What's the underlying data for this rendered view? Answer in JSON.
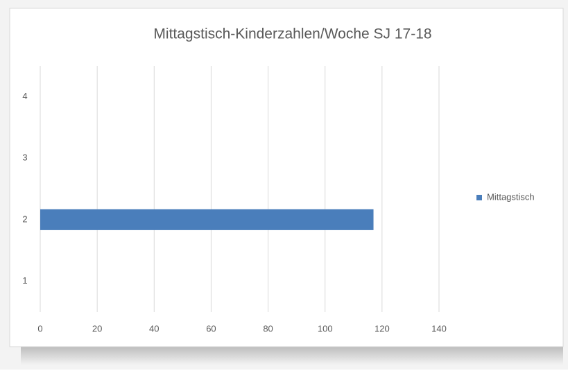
{
  "chart_data": {
    "type": "barh",
    "title": "Mittagstisch-Kinderzahlen/Woche SJ 17-18",
    "categories": [
      "1",
      "2",
      "3",
      "4"
    ],
    "series": [
      {
        "name": "Mittagstisch",
        "color": "#4a7ebb",
        "values": [
          null,
          117,
          null,
          null
        ]
      }
    ],
    "xlim": [
      0,
      140
    ],
    "xticks": [
      0,
      20,
      40,
      60,
      80,
      100,
      120,
      140
    ],
    "grid": true,
    "legend": "right"
  }
}
